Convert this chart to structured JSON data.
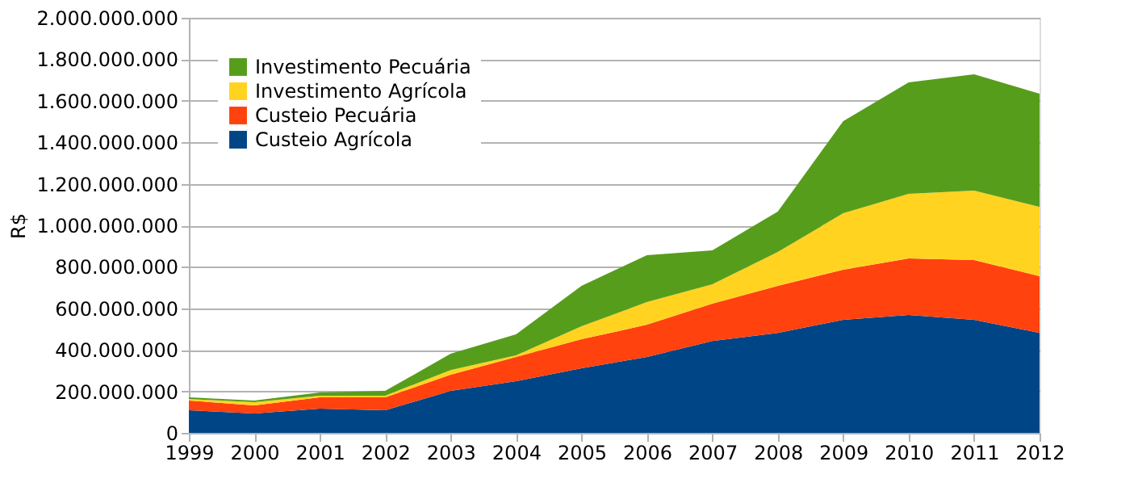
{
  "chart_data": {
    "type": "area",
    "stacked": true,
    "ylabel": "R$",
    "categories": [
      "1999",
      "2000",
      "2001",
      "2002",
      "2003",
      "2004",
      "2005",
      "2006",
      "2007",
      "2008",
      "2009",
      "2010",
      "2011",
      "2012"
    ],
    "series": [
      {
        "name": "Custeio Agrícola",
        "color": "#004586",
        "values": [
          109000000,
          93000000,
          117000000,
          109000000,
          202000000,
          249000000,
          311000000,
          366000000,
          443000000,
          482000000,
          545000000,
          568000000,
          545000000,
          482000000
        ]
      },
      {
        "name": "Custeio Pecuária",
        "color": "#ff420e",
        "values": [
          47000000,
          39000000,
          54000000,
          62000000,
          78000000,
          117000000,
          140000000,
          155000000,
          180000000,
          226000000,
          241000000,
          272000000,
          288000000,
          273000000
        ]
      },
      {
        "name": "Investimento Agrícola",
        "color": "#ffd320",
        "values": [
          7000000,
          16000000,
          8000000,
          8000000,
          23000000,
          8000000,
          63000000,
          109000000,
          93000000,
          164000000,
          272000000,
          312000000,
          334000000,
          334000000
        ]
      },
      {
        "name": "Investimento Pecuária",
        "color": "#579d1c",
        "values": [
          8000000,
          8000000,
          16000000,
          23000000,
          78000000,
          101000000,
          194000000,
          226000000,
          163000000,
          194000000,
          444000000,
          537000000,
          561000000,
          545000000
        ]
      }
    ],
    "ylim": [
      0,
      2000000000
    ],
    "yticks": [
      {
        "value": 0,
        "label": "0"
      },
      {
        "value": 200000000,
        "label": "200.000.000"
      },
      {
        "value": 400000000,
        "label": "400.000.000"
      },
      {
        "value": 600000000,
        "label": "600.000.000"
      },
      {
        "value": 800000000,
        "label": "800.000.000"
      },
      {
        "value": 1000000000,
        "label": "1.000.000.000"
      },
      {
        "value": 1200000000,
        "label": "1.200.000.000"
      },
      {
        "value": 1400000000,
        "label": "1.400.000.000"
      },
      {
        "value": 1600000000,
        "label": "1.600.000.000"
      },
      {
        "value": 1800000000,
        "label": "1.800.000.000"
      },
      {
        "value": 2000000000,
        "label": "2.000.000.000"
      }
    ],
    "grid": "y",
    "legend": "top left"
  }
}
